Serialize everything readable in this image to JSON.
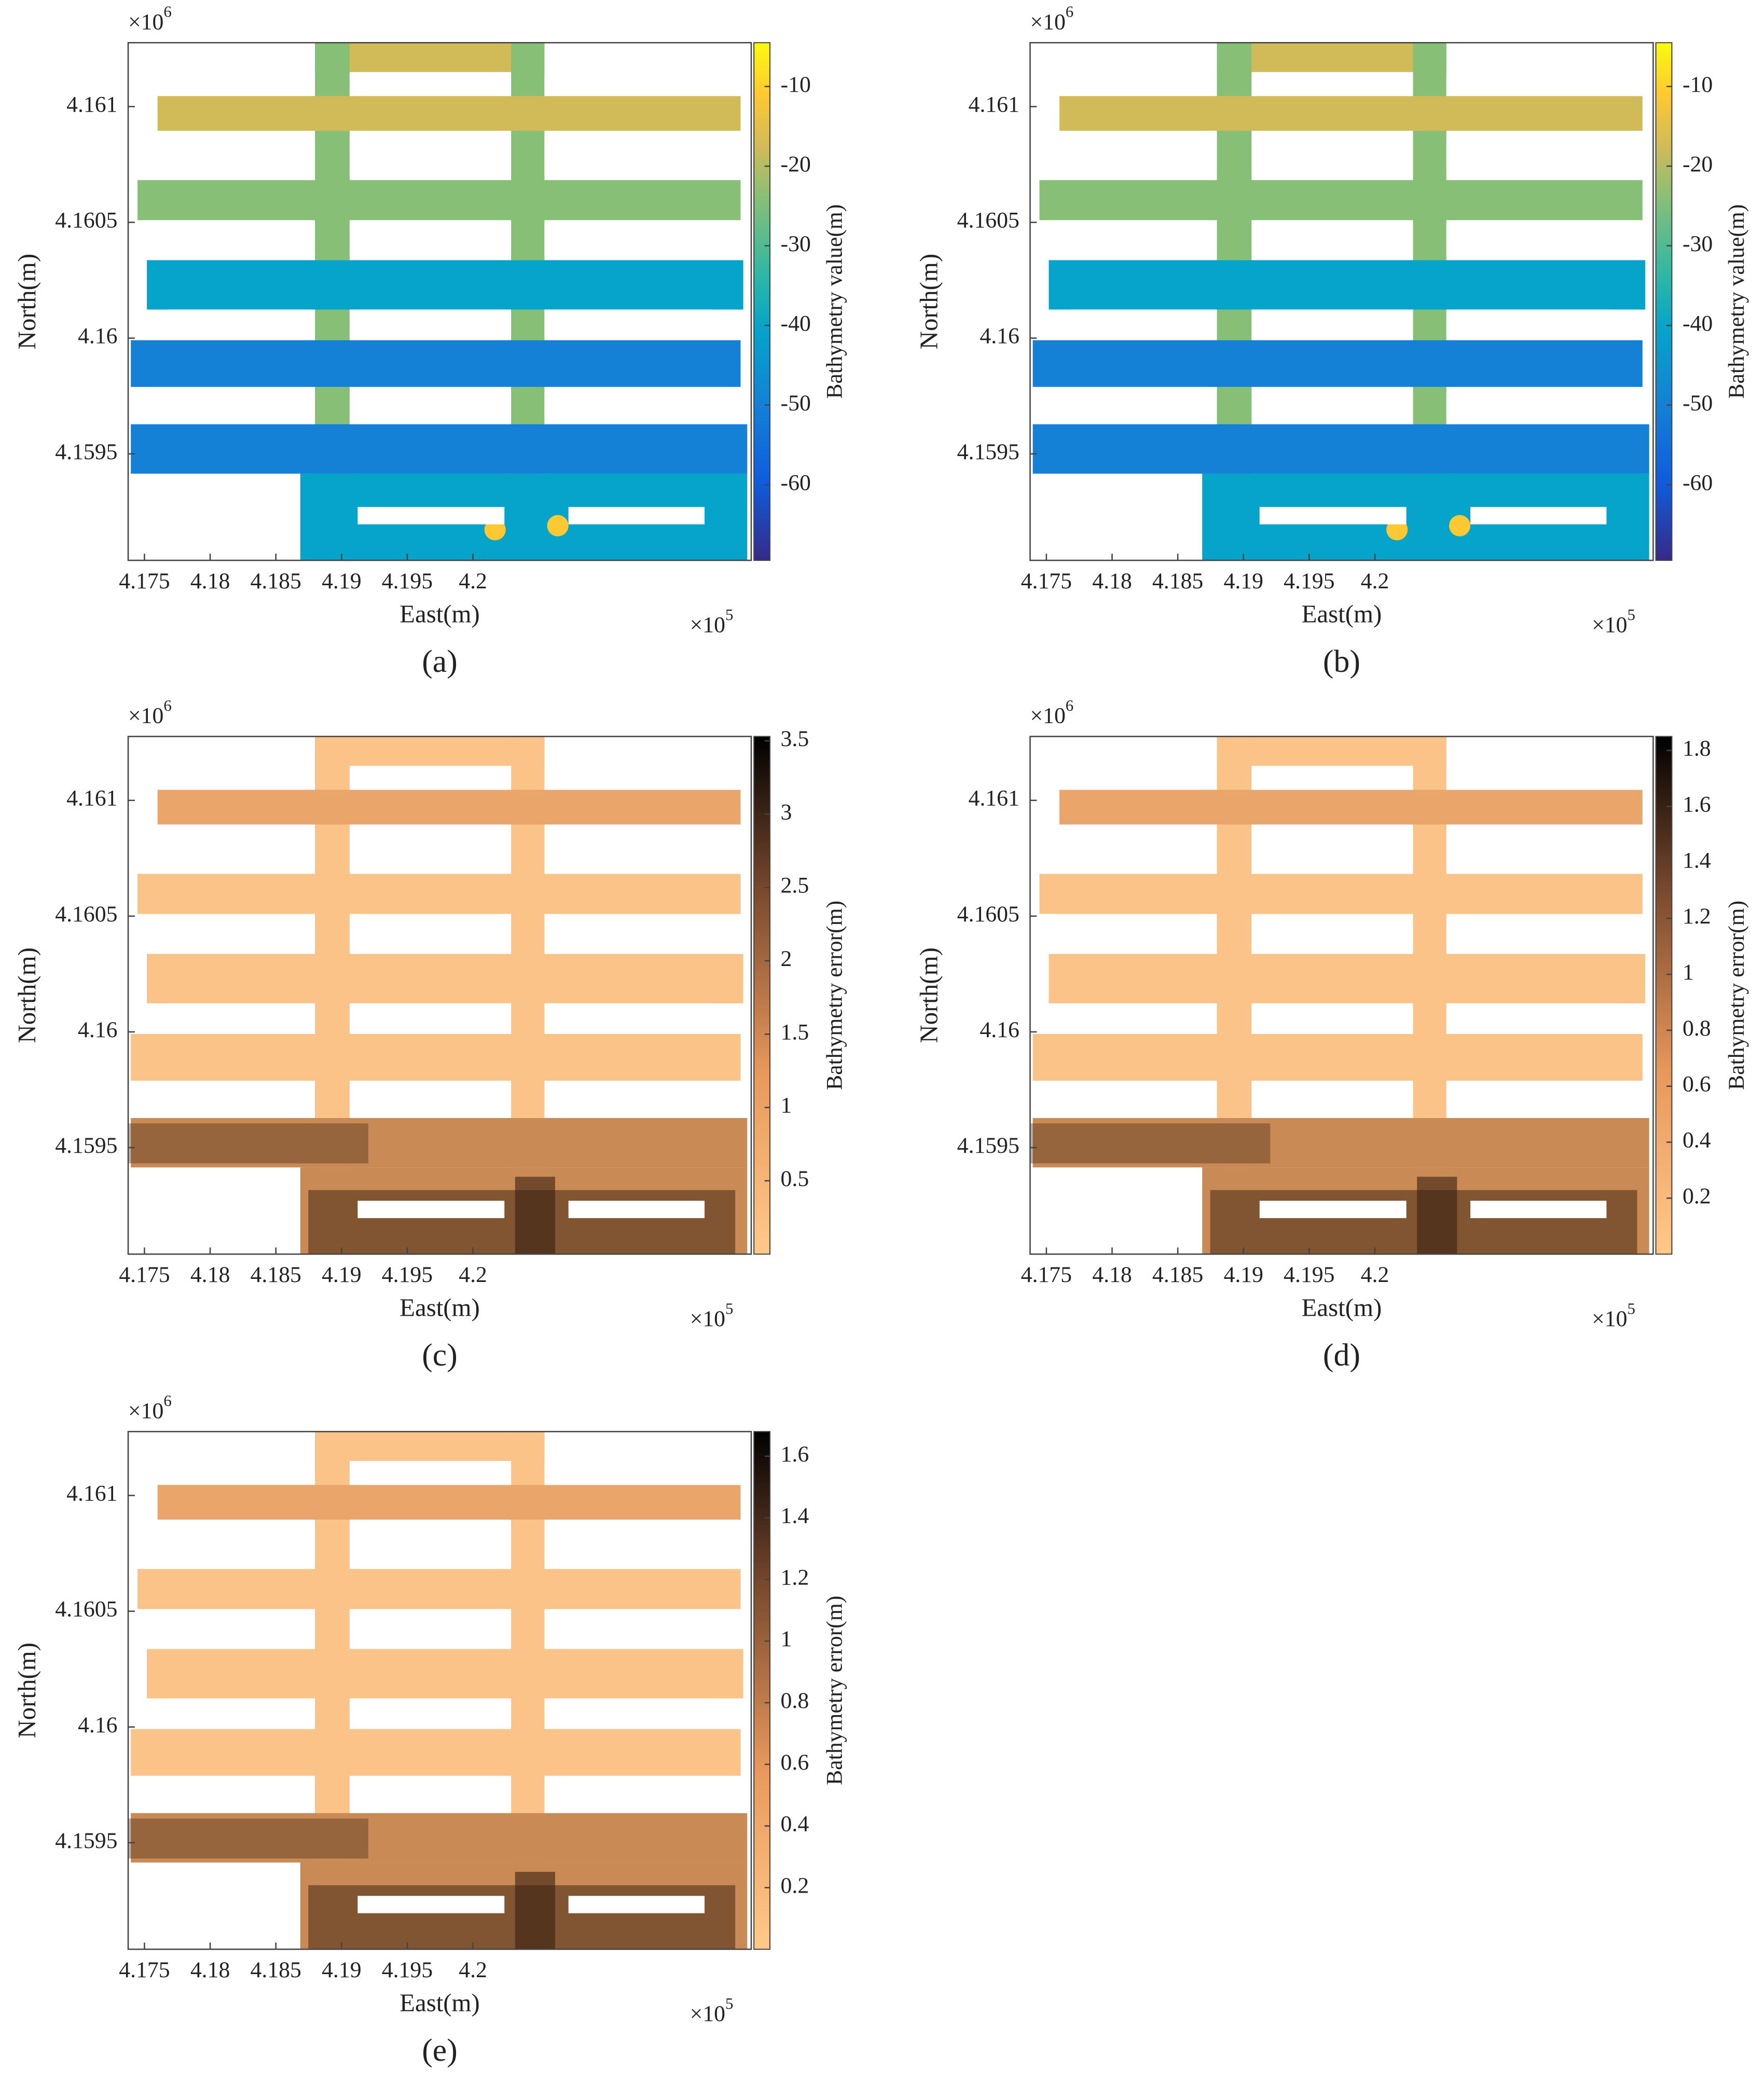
{
  "chart_data": [
    {
      "type": "heatmap",
      "label": "(a)",
      "xlabel": "East(m)",
      "ylabel": "North(m)",
      "x_factor": {
        "base": "×10",
        "power": "5"
      },
      "y_factor": {
        "base": "×10",
        "power": "6"
      },
      "xlim": [
        417376,
        422118
      ],
      "ylim": [
        4159040,
        4161276
      ],
      "xticks": [
        {
          "value": 417500,
          "label": "4.175"
        },
        {
          "value": 418000,
          "label": "4.18"
        },
        {
          "value": 418500,
          "label": "4.185"
        },
        {
          "value": 419000,
          "label": "4.19"
        },
        {
          "value": 419500,
          "label": "4.195"
        },
        {
          "value": 420000,
          "label": "4.2"
        }
      ],
      "yticks": [
        {
          "value": 4159500,
          "label": "4.1595"
        },
        {
          "value": 4160000,
          "label": "4.16"
        },
        {
          "value": 4160500,
          "label": "4.1605"
        },
        {
          "value": 4161000,
          "label": "4.161"
        }
      ],
      "colorbar": {
        "label": "Bathymetry value(m)",
        "colormap": "parula",
        "lim": [
          -69.5,
          -4.5
        ],
        "ticks": [
          -60,
          -50,
          -40,
          -30,
          -20,
          -10
        ]
      }
    },
    {
      "type": "heatmap",
      "label": "(b)",
      "xlabel": "East(m)",
      "ylabel": "North(m)",
      "x_factor": {
        "base": "×10",
        "power": "5"
      },
      "y_factor": {
        "base": "×10",
        "power": "6"
      },
      "xlim": [
        417376,
        422118
      ],
      "ylim": [
        4159040,
        4161276
      ],
      "xticks": [
        {
          "value": 417500,
          "label": "4.175"
        },
        {
          "value": 418000,
          "label": "4.18"
        },
        {
          "value": 418500,
          "label": "4.185"
        },
        {
          "value": 419000,
          "label": "4.19"
        },
        {
          "value": 419500,
          "label": "4.195"
        },
        {
          "value": 420000,
          "label": "4.2"
        }
      ],
      "yticks": [
        {
          "value": 4159500,
          "label": "4.1595"
        },
        {
          "value": 4160000,
          "label": "4.16"
        },
        {
          "value": 4160500,
          "label": "4.1605"
        },
        {
          "value": 4161000,
          "label": "4.161"
        }
      ],
      "colorbar": {
        "label": "Bathymetry value(m)",
        "colormap": "parula",
        "lim": [
          -69.5,
          -4.5
        ],
        "ticks": [
          -60,
          -50,
          -40,
          -30,
          -20,
          -10
        ]
      }
    },
    {
      "type": "heatmap",
      "label": "(c)",
      "xlabel": "East(m)",
      "ylabel": "North(m)",
      "x_factor": {
        "base": "×10",
        "power": "5"
      },
      "y_factor": {
        "base": "×10",
        "power": "6"
      },
      "xlim": [
        417376,
        422118
      ],
      "ylim": [
        4159040,
        4161276
      ],
      "xticks": [
        {
          "value": 417500,
          "label": "4.175"
        },
        {
          "value": 418000,
          "label": "4.18"
        },
        {
          "value": 418500,
          "label": "4.185"
        },
        {
          "value": 419000,
          "label": "4.19"
        },
        {
          "value": 419500,
          "label": "4.195"
        },
        {
          "value": 420000,
          "label": "4.2"
        }
      ],
      "yticks": [
        {
          "value": 4159500,
          "label": "4.1595"
        },
        {
          "value": 4160000,
          "label": "4.16"
        },
        {
          "value": 4160500,
          "label": "4.1605"
        },
        {
          "value": 4161000,
          "label": "4.161"
        }
      ],
      "colorbar": {
        "label": "Bathymetry error(m)",
        "colormap": "copper-reversed",
        "lim": [
          0,
          3.53
        ],
        "ticks": [
          0.5,
          1,
          1.5,
          2,
          2.5,
          3,
          3.5
        ]
      }
    },
    {
      "type": "heatmap",
      "label": "(d)",
      "xlabel": "East(m)",
      "ylabel": "North(m)",
      "x_factor": {
        "base": "×10",
        "power": "5"
      },
      "y_factor": {
        "base": "×10",
        "power": "6"
      },
      "xlim": [
        417376,
        422118
      ],
      "ylim": [
        4159040,
        4161276
      ],
      "xticks": [
        {
          "value": 417500,
          "label": "4.175"
        },
        {
          "value": 418000,
          "label": "4.18"
        },
        {
          "value": 418500,
          "label": "4.185"
        },
        {
          "value": 419000,
          "label": "4.19"
        },
        {
          "value": 419500,
          "label": "4.195"
        },
        {
          "value": 420000,
          "label": "4.2"
        }
      ],
      "yticks": [
        {
          "value": 4159500,
          "label": "4.1595"
        },
        {
          "value": 4160000,
          "label": "4.16"
        },
        {
          "value": 4160500,
          "label": "4.1605"
        },
        {
          "value": 4161000,
          "label": "4.161"
        }
      ],
      "colorbar": {
        "label": "Bathymetry error(m)",
        "colormap": "copper-reversed",
        "lim": [
          0,
          1.85
        ],
        "ticks": [
          0.2,
          0.4,
          0.6,
          0.8,
          1,
          1.2,
          1.4,
          1.6,
          1.8
        ]
      }
    },
    {
      "type": "heatmap",
      "label": "(e)",
      "xlabel": "East(m)",
      "ylabel": "North(m)",
      "x_factor": {
        "base": "×10",
        "power": "5"
      },
      "y_factor": {
        "base": "×10",
        "power": "6"
      },
      "xlim": [
        417376,
        422118
      ],
      "ylim": [
        4159040,
        4161276
      ],
      "xticks": [
        {
          "value": 417500,
          "label": "4.175"
        },
        {
          "value": 418000,
          "label": "4.18"
        },
        {
          "value": 418500,
          "label": "4.185"
        },
        {
          "value": 419000,
          "label": "4.19"
        },
        {
          "value": 419500,
          "label": "4.195"
        },
        {
          "value": 420000,
          "label": "4.2"
        }
      ],
      "yticks": [
        {
          "value": 4159500,
          "label": "4.1595"
        },
        {
          "value": 4160000,
          "label": "4.16"
        },
        {
          "value": 4160500,
          "label": "4.1605"
        },
        {
          "value": 4161000,
          "label": "4.161"
        }
      ],
      "colorbar": {
        "label": "Bathymetry error(m)",
        "colormap": "copper-reversed",
        "lim": [
          0,
          1.68
        ],
        "ticks": [
          0.2,
          0.4,
          0.6,
          0.8,
          1,
          1.2,
          1.4,
          1.6
        ]
      }
    }
  ]
}
